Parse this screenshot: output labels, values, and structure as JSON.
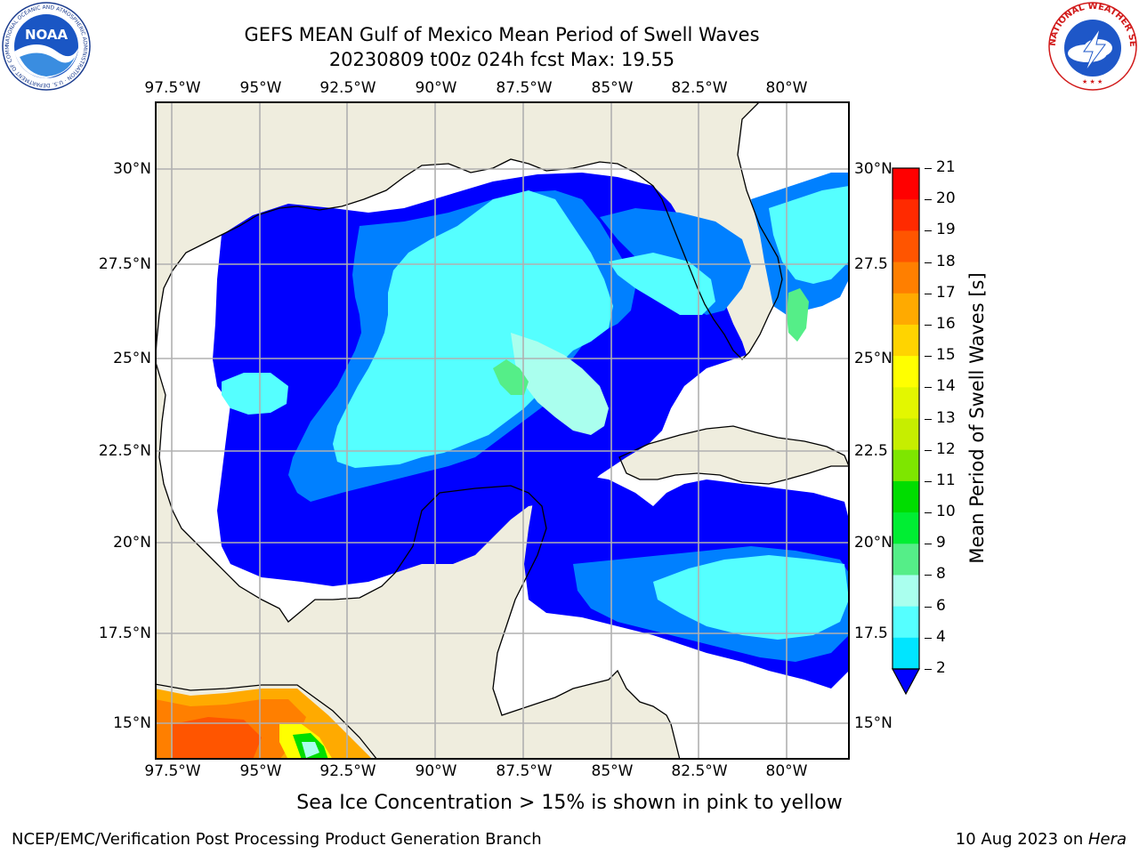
{
  "title": {
    "line1": "GEFS MEAN Gulf of Mexico Mean Period of Swell Waves",
    "line2": "20230809 t00z 024h fcst   Max: 19.55"
  },
  "map": {
    "lon_labels": [
      "97.5°W",
      "95°W",
      "92.5°W",
      "90°W",
      "87.5°W",
      "85°W",
      "82.5°W",
      "80°W"
    ],
    "lat_labels_left": [
      "30°N",
      "27.5°N",
      "25°N",
      "22.5°N",
      "20°N",
      "17.5°N",
      "15°N"
    ],
    "lat_labels_right": [
      "30°N",
      "27.5",
      "25°N",
      "22.5",
      "20°N",
      "17.5",
      "15°N"
    ],
    "land_color": "#efedde",
    "ocean_color": "#ffffff",
    "grid_color": "#b0b0b0"
  },
  "colorbar": {
    "label": "Mean Period of Swell Waves [s]",
    "ticks": [
      "21",
      "20",
      "19",
      "18",
      "17",
      "16",
      "15",
      "14",
      "13",
      "12",
      "11",
      "10",
      "9",
      "8",
      "6",
      "4",
      "2"
    ],
    "colors": [
      "#ff0000",
      "#ff2a00",
      "#ff5500",
      "#ff7f00",
      "#ffaa00",
      "#ffd400",
      "#ffff00",
      "#e3f700",
      "#c6ee00",
      "#7ee600",
      "#00dd00",
      "#00ee33",
      "#55ee88",
      "#aaffee",
      "#55ffff",
      "#00e5ff",
      "#0080ff",
      "#0000ff"
    ]
  },
  "caption": "Sea Ice Concentration > 15% is shown in pink to yellow",
  "footer": {
    "left": "NCEP/EMC/Verification Post Processing Product Generation Branch",
    "right_date": "10 Aug 2023 on ",
    "right_host": "Hera"
  },
  "logos": {
    "noaa": "NOAA",
    "noaa_ring": "NATIONAL OCEANIC AND ATMOSPHERIC ADMINISTRATION · U.S. DEPARTMENT OF COMMERCE",
    "nws_ring": "NATIONAL WEATHER SERVICE"
  }
}
